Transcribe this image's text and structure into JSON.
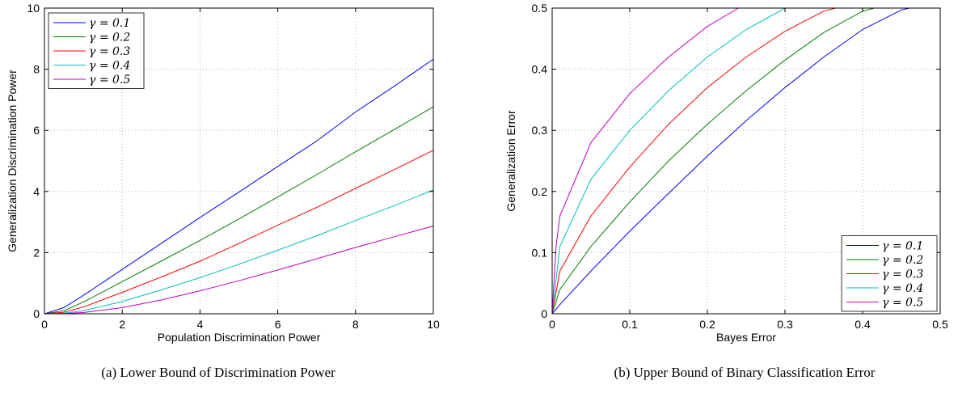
{
  "chart_data": [
    {
      "type": "line",
      "caption": "(a) Lower Bound of Discrimination Power",
      "xlabel": "Population Discrimination Power",
      "ylabel": "Generalization Discrimination Power",
      "xlim": [
        0,
        10
      ],
      "ylim": [
        0,
        10
      ],
      "xticks": [
        "0",
        "2",
        "4",
        "6",
        "8",
        "10"
      ],
      "yticks": [
        "0",
        "2",
        "4",
        "6",
        "8",
        "10"
      ],
      "grid": true,
      "legend_position": "top-left",
      "x": [
        0,
        0.5,
        1,
        2,
        3,
        4,
        5,
        6,
        7,
        8,
        9,
        10
      ],
      "series": [
        {
          "name": "γ = 0.1",
          "color": "#0000ff",
          "values": [
            0,
            0.2,
            0.6,
            1.45,
            2.3,
            3.15,
            3.98,
            4.82,
            5.65,
            6.6,
            7.45,
            8.33
          ]
        },
        {
          "name": "γ = 0.2",
          "color": "#008000",
          "values": [
            0,
            0.1,
            0.38,
            1.05,
            1.72,
            2.4,
            3.1,
            3.82,
            4.55,
            5.3,
            6.03,
            6.77
          ]
        },
        {
          "name": "γ = 0.3",
          "color": "#ff0000",
          "values": [
            0,
            0.05,
            0.22,
            0.7,
            1.2,
            1.72,
            2.3,
            2.9,
            3.48,
            4.1,
            4.72,
            5.35
          ]
        },
        {
          "name": "γ = 0.4",
          "color": "#00bfbf",
          "values": [
            0,
            0.02,
            0.1,
            0.4,
            0.78,
            1.18,
            1.62,
            2.08,
            2.55,
            3.05,
            3.54,
            4.05
          ]
        },
        {
          "name": "γ = 0.5",
          "color": "#bf00bf",
          "values": [
            0,
            0.01,
            0.04,
            0.2,
            0.45,
            0.75,
            1.08,
            1.43,
            1.8,
            2.17,
            2.52,
            2.87
          ]
        }
      ]
    },
    {
      "type": "line",
      "caption": "(b) Upper Bound of Binary Classification Error",
      "xlabel": "Bayes Error",
      "ylabel": "Generalization Error",
      "xlim": [
        0,
        0.5
      ],
      "ylim": [
        0,
        0.5
      ],
      "xticks": [
        "0",
        "0.1",
        "0.2",
        "0.3",
        "0.4",
        "0.5"
      ],
      "yticks": [
        "0",
        "0.1",
        "0.2",
        "0.3",
        "0.4",
        "0.5"
      ],
      "grid": true,
      "legend_position": "bottom-right",
      "series": [
        {
          "name": "γ = 0.1",
          "color": "#0000ff",
          "x": [
            0,
            0.01,
            0.05,
            0.1,
            0.15,
            0.2,
            0.25,
            0.3,
            0.35,
            0.4,
            0.45,
            0.46,
            0.5
          ],
          "values": [
            0,
            0.015,
            0.07,
            0.135,
            0.197,
            0.258,
            0.316,
            0.37,
            0.42,
            0.465,
            0.497,
            0.5,
            0.5
          ]
        },
        {
          "name": "γ = 0.2",
          "color": "#008000",
          "x": [
            0,
            0.01,
            0.05,
            0.1,
            0.15,
            0.2,
            0.25,
            0.3,
            0.35,
            0.4,
            0.415,
            0.5
          ],
          "values": [
            0,
            0.04,
            0.11,
            0.183,
            0.25,
            0.31,
            0.365,
            0.415,
            0.46,
            0.495,
            0.5,
            0.5
          ]
        },
        {
          "name": "γ = 0.3",
          "color": "#ff0000",
          "x": [
            0,
            0.01,
            0.05,
            0.1,
            0.15,
            0.2,
            0.25,
            0.3,
            0.35,
            0.365,
            0.5
          ],
          "values": [
            0,
            0.07,
            0.16,
            0.24,
            0.31,
            0.37,
            0.42,
            0.462,
            0.495,
            0.5,
            0.5
          ]
        },
        {
          "name": "γ = 0.4",
          "color": "#00bfbf",
          "x": [
            0,
            0.01,
            0.05,
            0.1,
            0.15,
            0.2,
            0.25,
            0.3,
            0.5
          ],
          "values": [
            0,
            0.11,
            0.22,
            0.3,
            0.365,
            0.42,
            0.465,
            0.5,
            0.5
          ]
        },
        {
          "name": "γ = 0.5",
          "color": "#bf00bf",
          "x": [
            0,
            0.005,
            0.01,
            0.05,
            0.1,
            0.15,
            0.2,
            0.24,
            0.5
          ],
          "values": [
            0,
            0.11,
            0.16,
            0.28,
            0.36,
            0.42,
            0.47,
            0.5,
            0.5
          ]
        }
      ]
    }
  ]
}
